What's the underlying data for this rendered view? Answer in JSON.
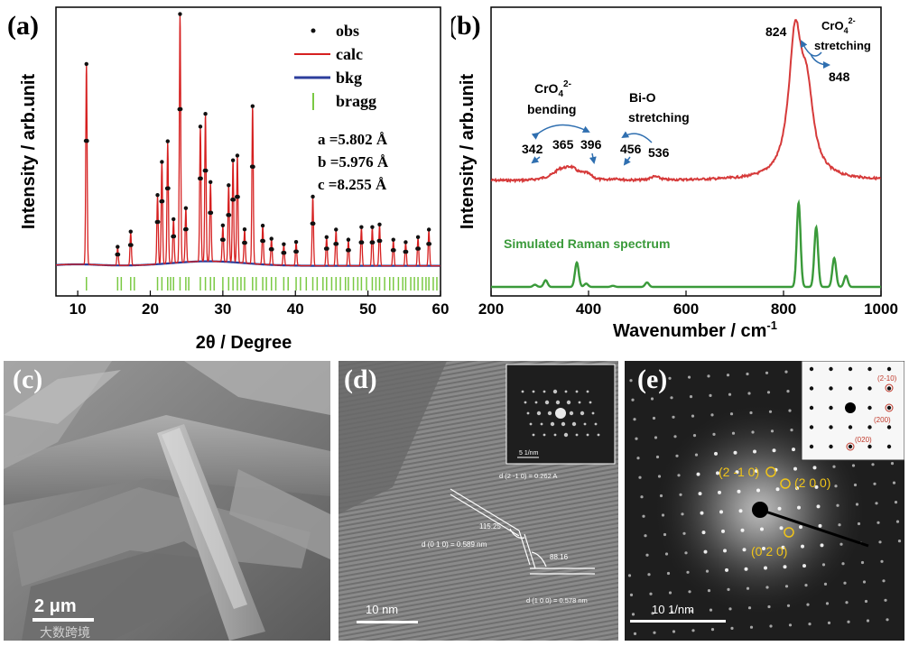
{
  "chart_data": [
    {
      "type": "line",
      "panel_label": "(a)",
      "xlabel": "2θ / Degree",
      "ylabel": "Intensity / arb.unit",
      "xlim": [
        7,
        60
      ],
      "xticks": [
        10,
        20,
        30,
        40,
        50,
        60
      ],
      "legend": {
        "placement": "top-right",
        "entries": [
          "obs",
          "calc",
          "bkg",
          "bragg"
        ]
      },
      "colors": {
        "obs": "#111111",
        "calc": "#d62020",
        "bkg": "#2c3e9c",
        "bragg": "#7ac943"
      },
      "lattice": [
        "a =5.802 Å",
        "b =5.976 Å",
        "c =8.255 Å"
      ],
      "peaks": [
        {
          "x": 11.2,
          "y": 0.79
        },
        {
          "x": 15.5,
          "y": 0.07
        },
        {
          "x": 17.3,
          "y": 0.13
        },
        {
          "x": 21.0,
          "y": 0.27
        },
        {
          "x": 21.6,
          "y": 0.4
        },
        {
          "x": 22.4,
          "y": 0.48
        },
        {
          "x": 23.2,
          "y": 0.17
        },
        {
          "x": 24.1,
          "y": 0.98
        },
        {
          "x": 24.9,
          "y": 0.21
        },
        {
          "x": 26.9,
          "y": 0.53
        },
        {
          "x": 27.6,
          "y": 0.58
        },
        {
          "x": 28.3,
          "y": 0.31
        },
        {
          "x": 30.0,
          "y": 0.14
        },
        {
          "x": 30.8,
          "y": 0.3
        },
        {
          "x": 31.4,
          "y": 0.4
        },
        {
          "x": 32.0,
          "y": 0.42
        },
        {
          "x": 33.0,
          "y": 0.13
        },
        {
          "x": 34.1,
          "y": 0.62
        },
        {
          "x": 35.5,
          "y": 0.15
        },
        {
          "x": 36.7,
          "y": 0.1
        },
        {
          "x": 38.4,
          "y": 0.08
        },
        {
          "x": 40.1,
          "y": 0.09
        },
        {
          "x": 42.4,
          "y": 0.27
        },
        {
          "x": 44.3,
          "y": 0.11
        },
        {
          "x": 45.6,
          "y": 0.14
        },
        {
          "x": 47.3,
          "y": 0.1
        },
        {
          "x": 49.1,
          "y": 0.15
        },
        {
          "x": 50.6,
          "y": 0.15
        },
        {
          "x": 51.6,
          "y": 0.16
        },
        {
          "x": 53.5,
          "y": 0.1
        },
        {
          "x": 55.2,
          "y": 0.09
        },
        {
          "x": 56.9,
          "y": 0.11
        },
        {
          "x": 58.4,
          "y": 0.14
        }
      ],
      "bragg_positions": [
        11.2,
        15.5,
        16.0,
        17.3,
        17.8,
        21.0,
        21.6,
        22.4,
        22.8,
        23.2,
        24.1,
        24.9,
        25.3,
        26.9,
        27.6,
        28.3,
        28.8,
        30.0,
        30.8,
        31.4,
        32.0,
        32.5,
        33.0,
        34.1,
        34.6,
        35.5,
        36.0,
        36.7,
        37.3,
        38.4,
        39.0,
        40.1,
        40.7,
        41.5,
        42.4,
        43.0,
        43.8,
        44.3,
        45.0,
        45.6,
        46.2,
        46.9,
        47.3,
        48.0,
        48.6,
        49.1,
        49.8,
        50.6,
        51.1,
        51.6,
        52.3,
        53.0,
        53.5,
        54.2,
        54.8,
        55.2,
        55.9,
        56.4,
        56.9,
        57.5,
        58.0,
        58.4,
        59.0,
        59.5
      ]
    },
    {
      "type": "line",
      "panel_label": "(b)",
      "xlabel": "Wavenumber / cm",
      "xlabel_sup": "-1",
      "ylabel": "Intensity / arb.unit",
      "xlim": [
        200,
        1000
      ],
      "xticks": [
        200,
        400,
        600,
        800,
        1000
      ],
      "colors": {
        "experimental": "#d63a3a",
        "simulated": "#3a9a3a"
      },
      "experimental_peaks": [
        {
          "x": 342,
          "y": 0.05
        },
        {
          "x": 365,
          "y": 0.07
        },
        {
          "x": 396,
          "y": 0.05
        },
        {
          "x": 456,
          "y": 0.02
        },
        {
          "x": 536,
          "y": 0.04
        },
        {
          "x": 824,
          "y": 0.86
        },
        {
          "x": 848,
          "y": 0.45
        }
      ],
      "simulated_peaks": [
        {
          "x": 290,
          "y": 0.02
        },
        {
          "x": 312,
          "y": 0.06
        },
        {
          "x": 376,
          "y": 0.22
        },
        {
          "x": 395,
          "y": 0.03
        },
        {
          "x": 450,
          "y": 0.01
        },
        {
          "x": 520,
          "y": 0.04
        },
        {
          "x": 831,
          "y": 0.76
        },
        {
          "x": 867,
          "y": 0.54
        },
        {
          "x": 904,
          "y": 0.26
        },
        {
          "x": 928,
          "y": 0.1
        }
      ],
      "annotations": {
        "cro4_bending": {
          "main": "CrO",
          "sub": "4",
          "sup": "2-",
          "line2": "bending"
        },
        "bio_stretching": {
          "line1": "Bi-O",
          "line2": "stretching"
        },
        "cro4_stretching": {
          "main": "CrO",
          "sub": "4",
          "sup": "2-",
          "line2": "stretching"
        },
        "peak_labels": [
          "342",
          "365",
          "396",
          "456",
          "536",
          "824",
          "848"
        ],
        "simulated_label": "Simulated Raman spectrum"
      }
    }
  ],
  "images": {
    "c": {
      "panel_label": "(c)",
      "scale": "2 μm",
      "watermark": "大数跨境"
    },
    "d": {
      "panel_label": "(d)",
      "scale": "10 nm",
      "fft_scale": "5 1/nm",
      "d_210": "d (2 -1 0) = 0.262 A",
      "angle1": "115.25",
      "d_010": "d (0 1 0) = 0.589 nm",
      "angle2": "88.16",
      "d_100": "d (1 0 0) = 0.578 nm"
    },
    "e": {
      "panel_label": "(e)",
      "scale": "10 1/nm",
      "spot1": "(2 -1 0)",
      "spot2": "(2 0 0)",
      "spot3": "(0 2 0)",
      "inset1": "(2-10)",
      "inset2": "(200)",
      "inset3": "(020)"
    }
  }
}
